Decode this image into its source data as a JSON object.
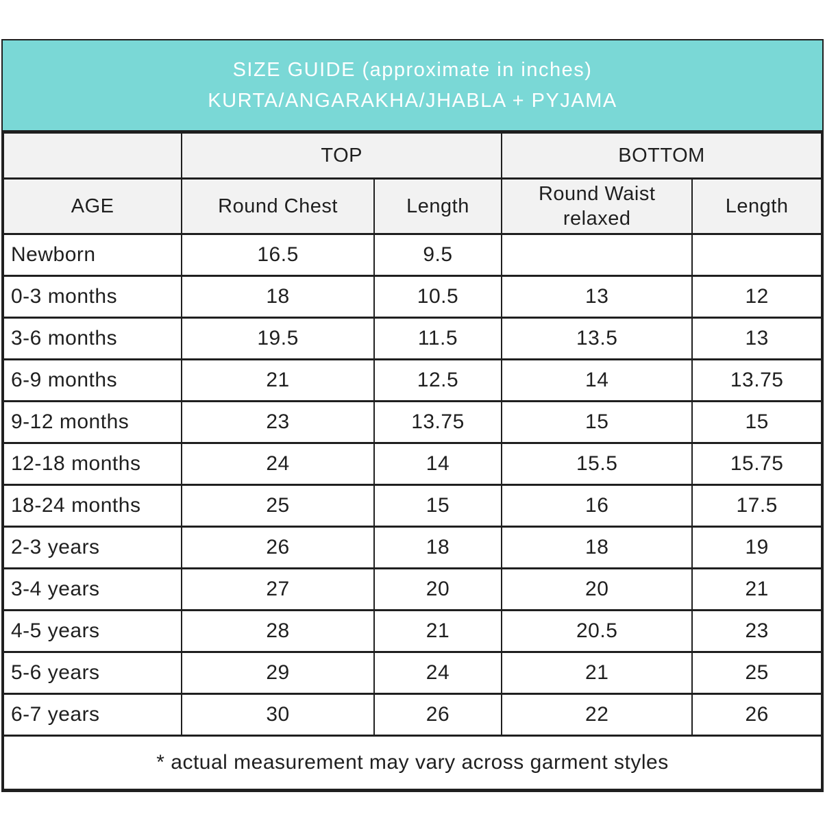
{
  "colors": {
    "teal_band": "#7ad8d6",
    "header_bg": "#f2f2f2",
    "border": "#1f1f1f",
    "title_text": "#ffffff",
    "body_text": "#1f1f1f"
  },
  "title": {
    "line1": "SIZE GUIDE (approximate in inches)",
    "line2": "KURTA/ANGARAKHA/JHABLA + PYJAMA"
  },
  "table": {
    "group_headers": {
      "top": "TOP",
      "bottom": "BOTTOM"
    },
    "columns": {
      "age": "AGE",
      "round_chest": "Round Chest",
      "top_length": "Length",
      "round_waist": "Round Waist relaxed",
      "bottom_length": "Length"
    },
    "rows": [
      {
        "age": "Newborn",
        "chest": "16.5",
        "top_length": "9.5",
        "waist": "",
        "bottom_length": ""
      },
      {
        "age": "0-3 months",
        "chest": "18",
        "top_length": "10.5",
        "waist": "13",
        "bottom_length": "12"
      },
      {
        "age": "3-6 months",
        "chest": "19.5",
        "top_length": "11.5",
        "waist": "13.5",
        "bottom_length": "13"
      },
      {
        "age": "6-9 months",
        "chest": "21",
        "top_length": "12.5",
        "waist": "14",
        "bottom_length": "13.75"
      },
      {
        "age": "9-12 months",
        "chest": "23",
        "top_length": "13.75",
        "waist": "15",
        "bottom_length": "15"
      },
      {
        "age": "12-18 months",
        "chest": "24",
        "top_length": "14",
        "waist": "15.5",
        "bottom_length": "15.75"
      },
      {
        "age": "18-24 months",
        "chest": "25",
        "top_length": "15",
        "waist": "16",
        "bottom_length": "17.5"
      },
      {
        "age": "2-3 years",
        "chest": "26",
        "top_length": "18",
        "waist": "18",
        "bottom_length": "19"
      },
      {
        "age": "3-4 years",
        "chest": "27",
        "top_length": "20",
        "waist": "20",
        "bottom_length": "21"
      },
      {
        "age": "4-5 years",
        "chest": "28",
        "top_length": "21",
        "waist": "20.5",
        "bottom_length": "23"
      },
      {
        "age": "5-6 years",
        "chest": "29",
        "top_length": "24",
        "waist": "21",
        "bottom_length": "25"
      },
      {
        "age": "6-7 years",
        "chest": "30",
        "top_length": "26",
        "waist": "22",
        "bottom_length": "26"
      }
    ],
    "footnote": "* actual measurement may vary across garment styles"
  }
}
